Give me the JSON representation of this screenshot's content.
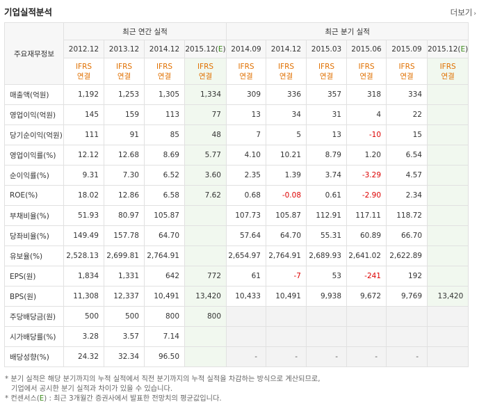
{
  "header": {
    "title": "기업실적분석",
    "more": "더보기"
  },
  "table": {
    "corner_label": "주요재무정보",
    "group_annual": "최근 연간 실적",
    "group_quarter": "최근 분기 실적",
    "periods": [
      "2012.12",
      "2013.12",
      "2014.12",
      "2015.12(E)",
      "2014.09",
      "2014.12",
      "2015.03",
      "2015.06",
      "2015.09",
      "2015.12(E)"
    ],
    "ifrs_line1": "IFRS",
    "ifrs_line2": "연결",
    "rows": [
      {
        "label": "매출액(억원)",
        "values": [
          "1,192",
          "1,253",
          "1,305",
          "1,334",
          "309",
          "336",
          "357",
          "318",
          "334",
          ""
        ]
      },
      {
        "label": "영업이익(억원)",
        "values": [
          "145",
          "159",
          "113",
          "77",
          "13",
          "34",
          "31",
          "4",
          "22",
          ""
        ]
      },
      {
        "label": "당기순이익(억원)",
        "values": [
          "111",
          "91",
          "85",
          "48",
          "7",
          "5",
          "13",
          "-10",
          "15",
          ""
        ]
      },
      {
        "label": "영업이익률(%)",
        "values": [
          "12.12",
          "12.68",
          "8.69",
          "5.77",
          "4.10",
          "10.21",
          "8.79",
          "1.20",
          "6.54",
          ""
        ]
      },
      {
        "label": "순이익률(%)",
        "values": [
          "9.31",
          "7.30",
          "6.52",
          "3.60",
          "2.35",
          "1.39",
          "3.74",
          "-3.29",
          "4.57",
          ""
        ]
      },
      {
        "label": "ROE(%)",
        "values": [
          "18.02",
          "12.86",
          "6.58",
          "7.62",
          "0.68",
          "-0.08",
          "0.61",
          "-2.90",
          "2.34",
          ""
        ]
      },
      {
        "label": "부채비율(%)",
        "values": [
          "51.93",
          "80.97",
          "105.87",
          "",
          "107.73",
          "105.87",
          "112.91",
          "117.11",
          "118.72",
          ""
        ]
      },
      {
        "label": "당좌비율(%)",
        "values": [
          "149.49",
          "157.78",
          "64.70",
          "",
          "57.64",
          "64.70",
          "55.31",
          "60.89",
          "66.70",
          ""
        ]
      },
      {
        "label": "유보율(%)",
        "values": [
          "2,528.13",
          "2,699.81",
          "2,764.91",
          "",
          "2,654.97",
          "2,764.91",
          "2,689.93",
          "2,641.02",
          "2,622.89",
          ""
        ]
      },
      {
        "label": "EPS(원)",
        "values": [
          "1,834",
          "1,331",
          "642",
          "772",
          "61",
          "-7",
          "53",
          "-241",
          "192",
          ""
        ]
      },
      {
        "label": "BPS(원)",
        "values": [
          "11,308",
          "12,337",
          "10,491",
          "13,420",
          "10,433",
          "10,491",
          "9,938",
          "9,672",
          "9,769",
          "13,420"
        ]
      },
      {
        "label": "주당배당금(원)",
        "values": [
          "500",
          "500",
          "800",
          "800",
          "",
          "",
          "",
          "",
          "",
          ""
        ]
      },
      {
        "label": "시가배당률(%)",
        "values": [
          "3.28",
          "3.57",
          "7.14",
          "",
          "",
          "",
          "",
          "",
          "",
          ""
        ]
      },
      {
        "label": "배당성향(%)",
        "values": [
          "24.32",
          "32.34",
          "96.50",
          "",
          "-",
          "-",
          "-",
          "-",
          "-",
          ""
        ]
      }
    ]
  },
  "notes": {
    "line1": "* 분기 실적은 해당 분기까지의 누적 실적에서 직전 분기까지의 누적 실적을 차감하는 방식으로 계산되므로,",
    "line2": "기업에서 공시한 분기 실적과 차이가 있을 수 있습니다.",
    "line3_pre": "* 컨센서스(",
    "line3_e": "E",
    "line3_post": ") : 최근 3개월간 증권사에서 발표한 전망치의 평균값입니다."
  },
  "colors": {
    "ifrs": "#e07000",
    "negative": "#d00000",
    "estimate_bg": "#f1f8ef",
    "estimate_mark": "#3a8a1a"
  }
}
